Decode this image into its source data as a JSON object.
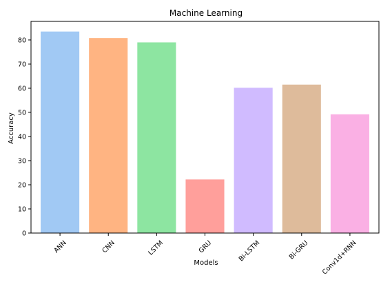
{
  "chart_data": {
    "type": "bar",
    "title": "Machine Learning",
    "xlabel": "Models",
    "ylabel": "Accuracy",
    "categories": [
      "ANN",
      "CNN",
      "LSTM",
      "GRU",
      "Bi-LSTM",
      "Bi-GRU",
      "Conv1d+RNN"
    ],
    "values": [
      83.5,
      80.8,
      79.0,
      22.2,
      60.2,
      61.5,
      49.2
    ],
    "colors": [
      "#a1c9f4",
      "#ffb482",
      "#8de5a1",
      "#ff9f9b",
      "#d0bbff",
      "#debb9b",
      "#fab0e4"
    ],
    "ylim": [
      0,
      87.7
    ],
    "yticks": [
      0,
      10,
      20,
      30,
      40,
      50,
      60,
      70,
      80
    ],
    "grid": false,
    "legend": "none"
  }
}
